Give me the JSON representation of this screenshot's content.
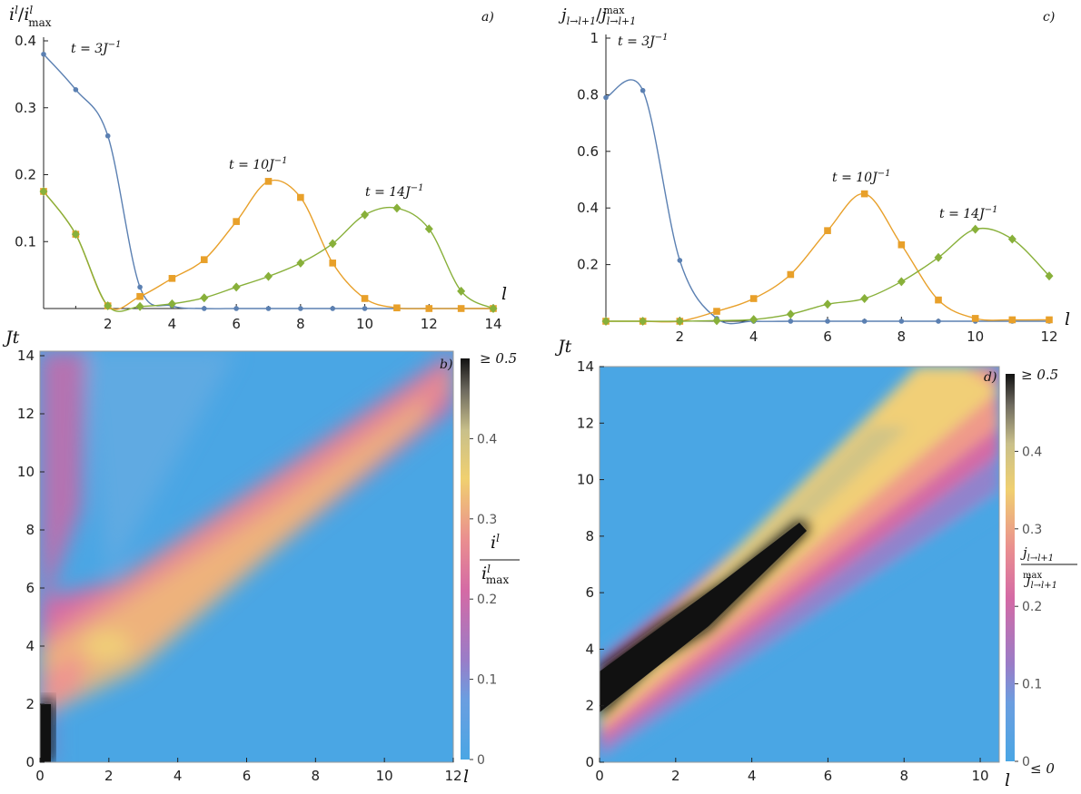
{
  "panels": {
    "a": {
      "letter": "a)",
      "ylabel_num": "i",
      "ylabel_num_sup": "l",
      "ylabel_slash": "/",
      "ylabel_den": "i",
      "ylabel_den_sup": "l",
      "ylabel_den_sub": "max",
      "xlabel": "l",
      "annot": [
        {
          "t": "t = 3J",
          "sup": "−1"
        },
        {
          "t": "t = 10J",
          "sup": "−1"
        },
        {
          "t": "t = 14J",
          "sup": "−1"
        }
      ]
    },
    "b": {
      "letter": "b)",
      "ylabel": "Jt",
      "xlabel": "l",
      "cb_top": "≥ 0.5",
      "cb_label_num": "i",
      "cb_label_num_sup": "l",
      "cb_label_den": "i",
      "cb_label_den_sup": "l",
      "cb_label_den_sub": "max"
    },
    "c": {
      "letter": "c)",
      "ylabel_num": "j",
      "ylabel_num_sub": "l→l+1",
      "ylabel_slash": "/",
      "ylabel_den": "j",
      "ylabel_den_sub": "l→l+1",
      "ylabel_den_sup": "max",
      "xlabel": "l",
      "annot": [
        {
          "t": "t = 3J",
          "sup": "−1"
        },
        {
          "t": "t = 10J",
          "sup": "−1"
        },
        {
          "t": "t = 14J",
          "sup": "−1"
        }
      ]
    },
    "d": {
      "letter": "d)",
      "ylabel": "Jt",
      "xlabel": "l",
      "cb_top": "≥ 0.5",
      "cb_bottom": "≤ 0",
      "cb_label_num": "j",
      "cb_label_num_sub": "l→l+1",
      "cb_label_den": "j",
      "cb_label_den_sub": "l→l+1",
      "cb_label_den_sup": "max"
    }
  },
  "chart_data": [
    {
      "id": "a",
      "type": "line",
      "xlim": [
        0,
        14
      ],
      "ylim": [
        0,
        0.4
      ],
      "xticks": [
        2,
        4,
        6,
        8,
        10,
        12,
        14
      ],
      "yticks": [
        0.1,
        0.2,
        0.3,
        0.4
      ],
      "series": [
        {
          "color": "#5b80b2",
          "marker": "circle",
          "x": [
            0,
            1,
            2,
            3,
            4,
            5,
            6,
            7,
            8,
            9,
            10,
            11,
            12,
            13,
            14
          ],
          "y": [
            0.38,
            0.327,
            0.258,
            0.032,
            0.004,
            0,
            0,
            0,
            0,
            0,
            0,
            0,
            0,
            0,
            0
          ]
        },
        {
          "color": "#e8a02a",
          "marker": "square",
          "x": [
            0,
            1,
            2,
            3,
            4,
            5,
            6,
            7,
            8,
            9,
            10,
            11,
            12,
            13,
            14
          ],
          "y": [
            0.175,
            0.111,
            0.004,
            0.018,
            0.045,
            0.073,
            0.13,
            0.19,
            0.166,
            0.068,
            0.015,
            0.001,
            0,
            0,
            0
          ]
        },
        {
          "color": "#88b03a",
          "marker": "diamond",
          "x": [
            0,
            1,
            2,
            3,
            4,
            5,
            6,
            7,
            8,
            9,
            10,
            11,
            12,
            13,
            14
          ],
          "y": [
            0.175,
            0.111,
            0.004,
            0.003,
            0.007,
            0.016,
            0.032,
            0.048,
            0.068,
            0.097,
            0.14,
            0.15,
            0.119,
            0.026,
            0
          ]
        }
      ]
    },
    {
      "id": "b",
      "type": "heatmap",
      "xlim": [
        0,
        12
      ],
      "ylim": [
        0,
        14
      ],
      "xticks": [
        0,
        2,
        4,
        6,
        8,
        10,
        12
      ],
      "yticks": [
        0,
        2,
        4,
        6,
        8,
        10,
        12,
        14
      ],
      "colorbar": {
        "ticks": [
          0,
          0.1,
          0.2,
          0.3,
          0.4
        ],
        "range": [
          0,
          0.5
        ]
      }
    },
    {
      "id": "c",
      "type": "line",
      "xlim": [
        0,
        12
      ],
      "ylim": [
        0,
        1.0
      ],
      "xticks": [
        2,
        4,
        6,
        8,
        10,
        12
      ],
      "yticks": [
        0.2,
        0.4,
        0.6,
        0.8,
        1.0
      ],
      "series": [
        {
          "color": "#5b80b2",
          "marker": "circle",
          "x": [
            0,
            1,
            2,
            3,
            4,
            5,
            6,
            7,
            8,
            9,
            10,
            11,
            12
          ],
          "y": [
            0.79,
            0.815,
            0.215,
            0.01,
            0,
            0,
            0,
            0,
            0,
            0,
            0,
            0,
            0
          ]
        },
        {
          "color": "#e8a02a",
          "marker": "square",
          "x": [
            0,
            1,
            2,
            3,
            4,
            5,
            6,
            7,
            8,
            9,
            10,
            11,
            12
          ],
          "y": [
            0,
            0,
            0,
            0.035,
            0.08,
            0.165,
            0.32,
            0.45,
            0.27,
            0.075,
            0.01,
            0.005,
            0.005
          ]
        },
        {
          "color": "#88b03a",
          "marker": "diamond",
          "x": [
            0,
            1,
            2,
            3,
            4,
            5,
            6,
            7,
            8,
            9,
            10,
            11,
            12
          ],
          "y": [
            0,
            0,
            0,
            0.002,
            0.006,
            0.025,
            0.06,
            0.08,
            0.14,
            0.225,
            0.325,
            0.29,
            0.16
          ]
        }
      ]
    },
    {
      "id": "d",
      "type": "heatmap",
      "xlim": [
        0,
        10.5
      ],
      "ylim": [
        0,
        14
      ],
      "xticks": [
        0,
        2,
        4,
        6,
        8,
        10
      ],
      "yticks": [
        0,
        2,
        4,
        6,
        8,
        10,
        12,
        14
      ],
      "colorbar": {
        "ticks": [
          0,
          0.1,
          0.2,
          0.3,
          0.4
        ],
        "range": [
          0,
          0.5
        ]
      }
    }
  ]
}
